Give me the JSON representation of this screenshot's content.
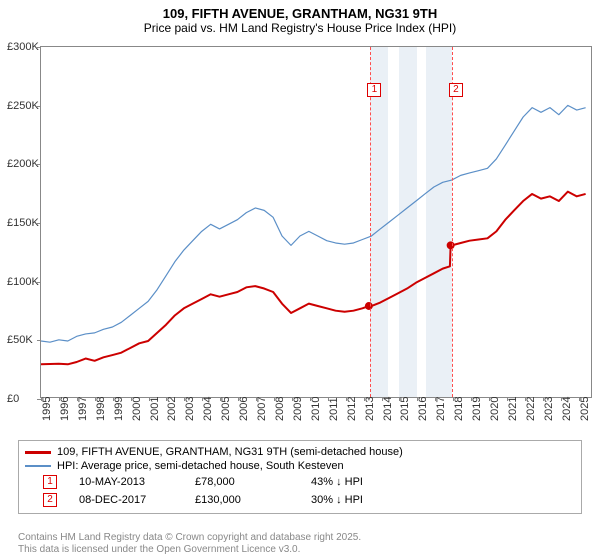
{
  "title": "109, FIFTH AVENUE, GRANTHAM, NG31 9TH",
  "subtitle": "Price paid vs. HM Land Registry's House Price Index (HPI)",
  "chart": {
    "type": "line",
    "background_color": "#ffffff",
    "border_color": "#888888",
    "xlim": [
      1995,
      2025.8
    ],
    "ylim": [
      0,
      300000
    ],
    "yticks": [
      0,
      50000,
      100000,
      150000,
      200000,
      250000,
      300000
    ],
    "ytick_labels": [
      "£0",
      "£50K",
      "£100K",
      "£150K",
      "£200K",
      "£250K",
      "£300K"
    ],
    "xticks": [
      1995,
      1996,
      1997,
      1998,
      1999,
      2000,
      2001,
      2002,
      2003,
      2004,
      2005,
      2006,
      2007,
      2008,
      2009,
      2010,
      2011,
      2012,
      2013,
      2014,
      2015,
      2016,
      2017,
      2018,
      2019,
      2020,
      2021,
      2022,
      2023,
      2024,
      2025
    ],
    "line_width_red": 2,
    "line_width_blue": 1.2,
    "shade_color": "#eaf0f6",
    "shade_ranges": [
      [
        2013.36,
        2014.36
      ],
      [
        2015.0,
        2016.0
      ],
      [
        2016.5,
        2017.94
      ]
    ],
    "vlines": [
      2013.36,
      2017.94
    ],
    "vline_color": "#ff4d4d",
    "markers": [
      {
        "label": "1",
        "x": 2013.6,
        "y_top": 36
      },
      {
        "label": "2",
        "x": 2018.15,
        "y_top": 36
      }
    ],
    "sale_points": [
      {
        "x": 2013.36,
        "y": 78000
      },
      {
        "x": 2017.94,
        "y": 130000
      }
    ],
    "series": [
      {
        "name": "price_paid",
        "color": "#cc0000",
        "points": [
          [
            1995.0,
            28000
          ],
          [
            1996.0,
            28500
          ],
          [
            1996.5,
            28000
          ],
          [
            1997.0,
            30000
          ],
          [
            1997.5,
            33000
          ],
          [
            1998.0,
            31000
          ],
          [
            1998.5,
            34000
          ],
          [
            1999.0,
            36000
          ],
          [
            1999.5,
            38000
          ],
          [
            2000.0,
            42000
          ],
          [
            2000.5,
            46000
          ],
          [
            2001.0,
            48000
          ],
          [
            2001.5,
            55000
          ],
          [
            2002.0,
            62000
          ],
          [
            2002.5,
            70000
          ],
          [
            2003.0,
            76000
          ],
          [
            2003.5,
            80000
          ],
          [
            2004.0,
            84000
          ],
          [
            2004.5,
            88000
          ],
          [
            2005.0,
            86000
          ],
          [
            2005.5,
            88000
          ],
          [
            2006.0,
            90000
          ],
          [
            2006.5,
            94000
          ],
          [
            2007.0,
            95000
          ],
          [
            2007.5,
            93000
          ],
          [
            2008.0,
            90000
          ],
          [
            2008.5,
            80000
          ],
          [
            2009.0,
            72000
          ],
          [
            2009.5,
            76000
          ],
          [
            2010.0,
            80000
          ],
          [
            2010.5,
            78000
          ],
          [
            2011.0,
            76000
          ],
          [
            2011.5,
            74000
          ],
          [
            2012.0,
            73000
          ],
          [
            2012.5,
            74000
          ],
          [
            2013.0,
            76000
          ],
          [
            2013.36,
            78000
          ],
          [
            2013.5,
            78000
          ],
          [
            2014.0,
            81000
          ],
          [
            2014.5,
            85000
          ],
          [
            2015.0,
            89000
          ],
          [
            2015.5,
            93000
          ],
          [
            2016.0,
            98000
          ],
          [
            2016.5,
            102000
          ],
          [
            2017.0,
            106000
          ],
          [
            2017.5,
            110000
          ],
          [
            2017.9,
            112000
          ],
          [
            2017.94,
            130000
          ],
          [
            2018.0,
            130000
          ],
          [
            2018.5,
            132000
          ],
          [
            2019.0,
            134000
          ],
          [
            2019.5,
            135000
          ],
          [
            2020.0,
            136000
          ],
          [
            2020.5,
            142000
          ],
          [
            2021.0,
            152000
          ],
          [
            2021.5,
            160000
          ],
          [
            2022.0,
            168000
          ],
          [
            2022.5,
            174000
          ],
          [
            2023.0,
            170000
          ],
          [
            2023.5,
            172000
          ],
          [
            2024.0,
            168000
          ],
          [
            2024.5,
            176000
          ],
          [
            2025.0,
            172000
          ],
          [
            2025.5,
            174000
          ]
        ]
      },
      {
        "name": "hpi",
        "color": "#5b8fc7",
        "points": [
          [
            1995.0,
            48000
          ],
          [
            1995.5,
            47000
          ],
          [
            1996.0,
            49000
          ],
          [
            1996.5,
            48000
          ],
          [
            1997.0,
            52000
          ],
          [
            1997.5,
            54000
          ],
          [
            1998.0,
            55000
          ],
          [
            1998.5,
            58000
          ],
          [
            1999.0,
            60000
          ],
          [
            1999.5,
            64000
          ],
          [
            2000.0,
            70000
          ],
          [
            2000.5,
            76000
          ],
          [
            2001.0,
            82000
          ],
          [
            2001.5,
            92000
          ],
          [
            2002.0,
            104000
          ],
          [
            2002.5,
            116000
          ],
          [
            2003.0,
            126000
          ],
          [
            2003.5,
            134000
          ],
          [
            2004.0,
            142000
          ],
          [
            2004.5,
            148000
          ],
          [
            2005.0,
            144000
          ],
          [
            2005.5,
            148000
          ],
          [
            2006.0,
            152000
          ],
          [
            2006.5,
            158000
          ],
          [
            2007.0,
            162000
          ],
          [
            2007.5,
            160000
          ],
          [
            2008.0,
            154000
          ],
          [
            2008.5,
            138000
          ],
          [
            2009.0,
            130000
          ],
          [
            2009.5,
            138000
          ],
          [
            2010.0,
            142000
          ],
          [
            2010.5,
            138000
          ],
          [
            2011.0,
            134000
          ],
          [
            2011.5,
            132000
          ],
          [
            2012.0,
            131000
          ],
          [
            2012.5,
            132000
          ],
          [
            2013.0,
            135000
          ],
          [
            2013.5,
            138000
          ],
          [
            2014.0,
            144000
          ],
          [
            2014.5,
            150000
          ],
          [
            2015.0,
            156000
          ],
          [
            2015.5,
            162000
          ],
          [
            2016.0,
            168000
          ],
          [
            2016.5,
            174000
          ],
          [
            2017.0,
            180000
          ],
          [
            2017.5,
            184000
          ],
          [
            2018.0,
            186000
          ],
          [
            2018.5,
            190000
          ],
          [
            2019.0,
            192000
          ],
          [
            2019.5,
            194000
          ],
          [
            2020.0,
            196000
          ],
          [
            2020.5,
            204000
          ],
          [
            2021.0,
            216000
          ],
          [
            2021.5,
            228000
          ],
          [
            2022.0,
            240000
          ],
          [
            2022.5,
            248000
          ],
          [
            2023.0,
            244000
          ],
          [
            2023.5,
            248000
          ],
          [
            2024.0,
            242000
          ],
          [
            2024.5,
            250000
          ],
          [
            2025.0,
            246000
          ],
          [
            2025.5,
            248000
          ]
        ]
      }
    ]
  },
  "legend": {
    "item1": {
      "color": "#cc0000",
      "label": "109, FIFTH AVENUE, GRANTHAM, NG31 9TH (semi-detached house)"
    },
    "item2": {
      "color": "#5b8fc7",
      "label": "HPI: Average price, semi-detached house, South Kesteven"
    }
  },
  "sales": [
    {
      "marker": "1",
      "date": "10-MAY-2013",
      "price": "£78,000",
      "delta": "43% ↓ HPI"
    },
    {
      "marker": "2",
      "date": "08-DEC-2017",
      "price": "£130,000",
      "delta": "30% ↓ HPI"
    }
  ],
  "footer": {
    "line1": "Contains HM Land Registry data © Crown copyright and database right 2025.",
    "line2": "This data is licensed under the Open Government Licence v3.0."
  }
}
